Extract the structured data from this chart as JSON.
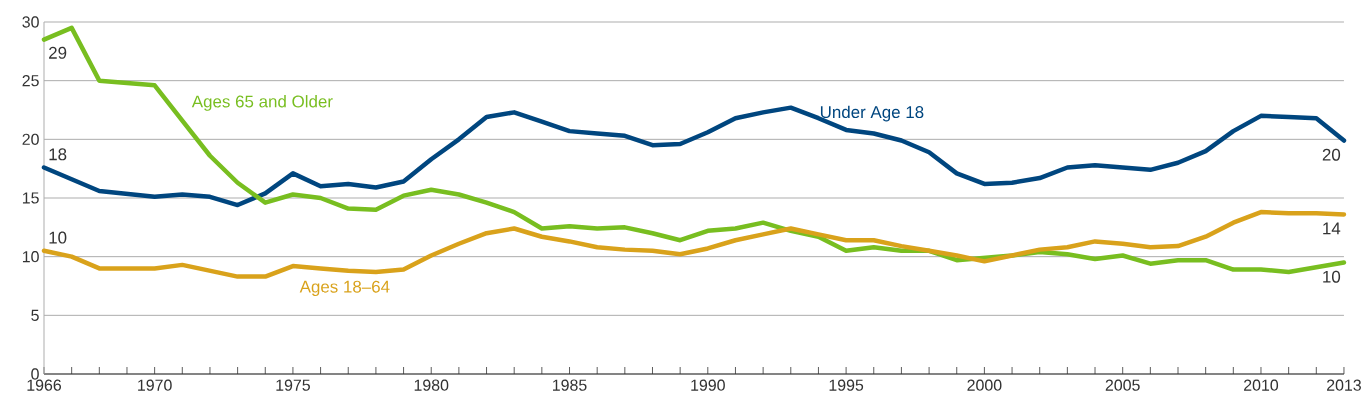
{
  "chart_data": {
    "type": "line",
    "marker": "none",
    "grid": "y",
    "ylim": [
      0,
      30
    ],
    "yticks": [
      0,
      5,
      10,
      15,
      20,
      25,
      30
    ],
    "xlim": [
      1966,
      2013
    ],
    "xticks": [
      1966,
      {
        "value": 1967,
        "label": null
      },
      {
        "value": 1968,
        "label": null
      },
      {
        "value": 1969,
        "label": null
      },
      1970,
      {
        "value": 1971,
        "label": null
      },
      {
        "value": 1972,
        "label": null
      },
      {
        "value": 1973,
        "label": null
      },
      {
        "value": 1974,
        "label": null
      },
      1975,
      {
        "value": 1976,
        "label": null
      },
      {
        "value": 1977,
        "label": null
      },
      {
        "value": 1978,
        "label": null
      },
      {
        "value": 1979,
        "label": null
      },
      1980,
      {
        "value": 1981,
        "label": null
      },
      {
        "value": 1982,
        "label": null
      },
      {
        "value": 1983,
        "label": null
      },
      {
        "value": 1984,
        "label": null
      },
      1985,
      {
        "value": 1986,
        "label": null
      },
      {
        "value": 1987,
        "label": null
      },
      {
        "value": 1988,
        "label": null
      },
      {
        "value": 1989,
        "label": null
      },
      1990,
      {
        "value": 1991,
        "label": null
      },
      {
        "value": 1992,
        "label": null
      },
      {
        "value": 1993,
        "label": null
      },
      {
        "value": 1994,
        "label": null
      },
      1995,
      {
        "value": 1996,
        "label": null
      },
      {
        "value": 1997,
        "label": null
      },
      {
        "value": 1998,
        "label": null
      },
      {
        "value": 1999,
        "label": null
      },
      2000,
      {
        "value": 2001,
        "label": null
      },
      {
        "value": 2002,
        "label": null
      },
      {
        "value": 2003,
        "label": null
      },
      {
        "value": 2004,
        "label": null
      },
      2005,
      {
        "value": 2006,
        "label": null
      },
      {
        "value": 2007,
        "label": null
      },
      {
        "value": 2008,
        "label": null
      },
      {
        "value": 2009,
        "label": null
      },
      2010,
      {
        "value": 2011,
        "label": null
      },
      {
        "value": 2012,
        "label": null
      },
      2013
    ],
    "x": [
      1966,
      1967,
      1968,
      1970,
      1971,
      1972,
      1973,
      1974,
      1975,
      1976,
      1977,
      1978,
      1979,
      1980,
      1981,
      1982,
      1983,
      1984,
      1985,
      1986,
      1987,
      1988,
      1989,
      1990,
      1991,
      1992,
      1993,
      1994,
      1995,
      1996,
      1997,
      1998,
      1999,
      2000,
      2001,
      2002,
      2003,
      2004,
      2005,
      2006,
      2007,
      2008,
      2009,
      2010,
      2011,
      2012,
      2013
    ],
    "series": [
      {
        "name": "Under Age 18",
        "color": "#00467f",
        "values": [
          17.6,
          16.6,
          15.6,
          15.1,
          15.3,
          15.1,
          14.4,
          15.4,
          17.1,
          16.0,
          16.2,
          15.9,
          16.4,
          18.3,
          20.0,
          21.9,
          22.3,
          21.5,
          20.7,
          20.5,
          20.3,
          19.5,
          19.6,
          20.6,
          21.8,
          22.3,
          22.7,
          21.8,
          20.8,
          20.5,
          19.9,
          18.9,
          17.1,
          16.2,
          16.3,
          16.7,
          17.6,
          17.8,
          17.6,
          17.4,
          18.0,
          19.0,
          20.7,
          22.0,
          21.9,
          21.8,
          19.9
        ],
        "value_labels": [
          "18",
          null,
          null,
          null,
          null,
          null,
          null,
          null,
          null,
          null,
          null,
          null,
          null,
          null,
          null,
          null,
          null,
          null,
          null,
          null,
          null,
          null,
          null,
          null,
          null,
          null,
          null,
          null,
          null,
          null,
          null,
          null,
          null,
          null,
          null,
          null,
          null,
          null,
          null,
          null,
          null,
          null,
          null,
          null,
          null,
          null,
          "20"
        ]
      },
      {
        "name": "Ages 65 and Older",
        "color": "#78be20",
        "values": [
          28.5,
          29.5,
          25.0,
          24.6,
          21.6,
          18.6,
          16.3,
          14.6,
          15.3,
          15.0,
          14.1,
          14.0,
          15.2,
          15.7,
          15.3,
          14.6,
          13.8,
          12.4,
          12.6,
          12.4,
          12.5,
          12.0,
          11.4,
          12.2,
          12.4,
          12.9,
          12.2,
          11.7,
          10.5,
          10.8,
          10.5,
          10.5,
          9.7,
          9.9,
          10.1,
          10.4,
          10.2,
          9.8,
          10.1,
          9.4,
          9.7,
          9.7,
          8.9,
          8.9,
          8.7,
          9.1,
          9.5
        ],
        "value_labels": [
          "29",
          null,
          null,
          null,
          null,
          null,
          null,
          null,
          null,
          null,
          null,
          null,
          null,
          null,
          null,
          null,
          null,
          null,
          null,
          null,
          null,
          null,
          null,
          null,
          null,
          null,
          null,
          null,
          null,
          null,
          null,
          null,
          null,
          null,
          null,
          null,
          null,
          null,
          null,
          null,
          null,
          null,
          null,
          null,
          null,
          null,
          "10"
        ]
      },
      {
        "name": "Ages 18–64",
        "color": "#d9a21b",
        "values": [
          10.5,
          10.0,
          9.0,
          9.0,
          9.3,
          8.8,
          8.3,
          8.3,
          9.2,
          9.0,
          8.8,
          8.7,
          8.9,
          10.1,
          11.1,
          12.0,
          12.4,
          11.7,
          11.3,
          10.8,
          10.6,
          10.5,
          10.2,
          10.7,
          11.4,
          11.9,
          12.4,
          11.9,
          11.4,
          11.4,
          10.9,
          10.5,
          10.1,
          9.6,
          10.1,
          10.6,
          10.8,
          11.3,
          11.1,
          10.8,
          10.9,
          11.7,
          12.9,
          13.8,
          13.7,
          13.7,
          13.6
        ],
        "value_labels": [
          "10",
          null,
          null,
          null,
          null,
          null,
          null,
          null,
          null,
          null,
          null,
          null,
          null,
          null,
          null,
          null,
          null,
          null,
          null,
          null,
          null,
          null,
          null,
          null,
          null,
          null,
          null,
          null,
          null,
          null,
          null,
          null,
          null,
          null,
          null,
          null,
          null,
          null,
          null,
          null,
          null,
          null,
          null,
          null,
          null,
          null,
          "14"
        ]
      }
    ]
  }
}
